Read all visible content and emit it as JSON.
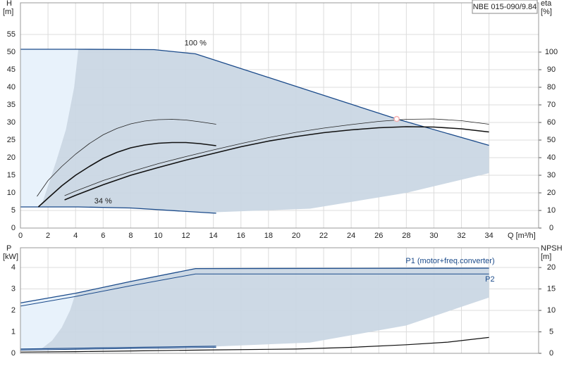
{
  "chart_data": [
    {
      "type": "line",
      "title": "NBE 015-090/9.84",
      "ylabel": "H",
      "yunit": "[m]",
      "y2label": "eta",
      "y2unit": "[%]",
      "xlabel": "Q [m³/h]",
      "xlim": [
        0,
        37.6
      ],
      "ylim": [
        0,
        64
      ],
      "y2lim": [
        0,
        128
      ],
      "xticks": [
        0,
        2,
        4,
        6,
        8,
        10,
        12,
        14,
        16,
        18,
        20,
        22,
        24,
        26,
        28,
        30,
        32,
        34
      ],
      "yticks": [
        0,
        5,
        10,
        15,
        20,
        25,
        30,
        35,
        40,
        45,
        50,
        55
      ],
      "y2ticks": [
        0,
        10,
        20,
        30,
        40,
        50,
        60,
        70,
        80,
        90,
        100
      ],
      "show_xtick_labels": true,
      "grid": true,
      "areas": [
        {
          "color": "#c9d6e3",
          "x": [
            0,
            4.2,
            9.7,
            12.7,
            27.3,
            34,
            34,
            28,
            21,
            14.2,
            14.2,
            8,
            4.2,
            0
          ],
          "values": [
            50.8,
            50.8,
            50.7,
            49.5,
            31,
            23.5,
            15.6,
            10,
            5.5,
            4.5,
            4.2,
            5.7,
            6,
            6
          ]
        },
        {
          "color": "#eaf4fd",
          "x": [
            0,
            4.2,
            3.9,
            3.3,
            2.6,
            2,
            1.5,
            0
          ],
          "values": [
            50.8,
            50.8,
            40,
            28,
            19,
            12,
            6.1,
            6
          ]
        }
      ],
      "series": [
        {
          "color": "#1a4a8a",
          "width": 1.3,
          "x": [
            0,
            4.2,
            9.7,
            12.7,
            27.3,
            34
          ],
          "values": [
            50.8,
            50.8,
            50.7,
            49.5,
            31,
            23.5
          ]
        },
        {
          "color": "#1a4a8a",
          "width": 1.3,
          "x": [
            0,
            4.2,
            8,
            14.2
          ],
          "values": [
            6,
            6,
            5.7,
            4.2
          ]
        },
        {
          "color": "#222222",
          "width": 0.8,
          "x": [
            1.2,
            2,
            3,
            4,
            5,
            6,
            7,
            8,
            9,
            10,
            11,
            12,
            13,
            14.2
          ],
          "values": [
            9,
            13.5,
            17.5,
            21,
            24,
            26.5,
            28.3,
            29.6,
            30.4,
            30.8,
            30.9,
            30.7,
            30.2,
            29.5
          ]
        },
        {
          "color": "#111111",
          "width": 1.6,
          "x": [
            1.3,
            2,
            3,
            4,
            5,
            6,
            7,
            8,
            9,
            10,
            11,
            12,
            13,
            14.2
          ],
          "values": [
            6,
            8.5,
            12,
            15,
            17.5,
            19.8,
            21.5,
            22.8,
            23.6,
            24.1,
            24.3,
            24.3,
            24,
            23.4
          ]
        },
        {
          "color": "#222222",
          "width": 0.8,
          "x": [
            3.2,
            4,
            6,
            8,
            10,
            12,
            14,
            16,
            18,
            20,
            22,
            24,
            26,
            28,
            30,
            32,
            34
          ],
          "values": [
            9.2,
            10.5,
            13.5,
            16,
            18.3,
            20.3,
            22.2,
            24,
            25.7,
            27.2,
            28.4,
            29.4,
            30.3,
            30.9,
            31,
            30.5,
            29.5
          ]
        },
        {
          "color": "#111111",
          "width": 1.6,
          "x": [
            3.2,
            4,
            6,
            8,
            10,
            12,
            14,
            16,
            18,
            20,
            22,
            24,
            26,
            28,
            30,
            32,
            34
          ],
          "values": [
            8,
            9.3,
            12.3,
            15,
            17.2,
            19.3,
            21.2,
            23.1,
            24.7,
            26,
            27.1,
            27.9,
            28.5,
            28.8,
            28.7,
            28.2,
            27.3
          ]
        }
      ],
      "points": [
        {
          "x": 27.3,
          "y": 31,
          "color": "#f6b0b0"
        }
      ],
      "annotations": [
        {
          "text": "100 %",
          "x": 12.7,
          "y": 52.5
        },
        {
          "text": "34 %",
          "x": 6,
          "y": 7.6
        }
      ]
    },
    {
      "type": "line",
      "ylabel": "P",
      "yunit": "[kW]",
      "y2label": "NPSH",
      "y2unit": "[m]",
      "xlim": [
        0,
        37.6
      ],
      "ylim": [
        0,
        4.92
      ],
      "y2lim": [
        0,
        24.6
      ],
      "xticks": [
        0,
        2,
        4,
        6,
        8,
        10,
        12,
        14,
        16,
        18,
        20,
        22,
        24,
        26,
        28,
        30,
        32,
        34
      ],
      "yticks": [
        0,
        1,
        2,
        3,
        4
      ],
      "y2ticks": [
        0,
        5,
        10,
        15,
        20
      ],
      "show_xtick_labels": false,
      "grid": true,
      "areas": [
        {
          "color": "#c9d6e3",
          "x": [
            0,
            4,
            8,
            12.7,
            34,
            34,
            28,
            21,
            14.2,
            14.2,
            0
          ],
          "values": [
            2.35,
            2.8,
            3.35,
            3.95,
            3.97,
            2.6,
            1.3,
            0.5,
            0.32,
            0.32,
            0.2
          ]
        },
        {
          "color": "#eaf4fd",
          "x": [
            0,
            4,
            3.6,
            3,
            2.3,
            1.5,
            0
          ],
          "values": [
            2.35,
            2.8,
            2,
            1.2,
            0.6,
            0.2,
            0.2
          ]
        }
      ],
      "series": [
        {
          "name": "P1 (motor+freq.converter)",
          "color": "#1a4a8a",
          "width": 1.3,
          "x": [
            0,
            4,
            8,
            12.7,
            34
          ],
          "values": [
            2.35,
            2.8,
            3.35,
            3.95,
            3.97
          ]
        },
        {
          "name": "P2",
          "color": "#1a4a8a",
          "width": 1.0,
          "x": [
            0,
            4,
            8,
            12.7,
            34
          ],
          "values": [
            2.2,
            2.65,
            3.15,
            3.7,
            3.7
          ]
        },
        {
          "color": "#1a4a8a",
          "width": 1.3,
          "x": [
            0,
            14.2
          ],
          "values": [
            0.2,
            0.33
          ]
        },
        {
          "color": "#1a4a8a",
          "width": 1.0,
          "x": [
            0,
            14.2
          ],
          "values": [
            0.15,
            0.28
          ]
        },
        {
          "color": "#111111",
          "width": 1.2,
          "axis": "y2",
          "x": [
            0,
            4,
            8,
            14,
            20,
            24,
            28,
            31,
            34
          ],
          "values": [
            0.3,
            0.4,
            0.55,
            0.8,
            1,
            1.4,
            2,
            2.6,
            3.7
          ]
        }
      ]
    }
  ]
}
